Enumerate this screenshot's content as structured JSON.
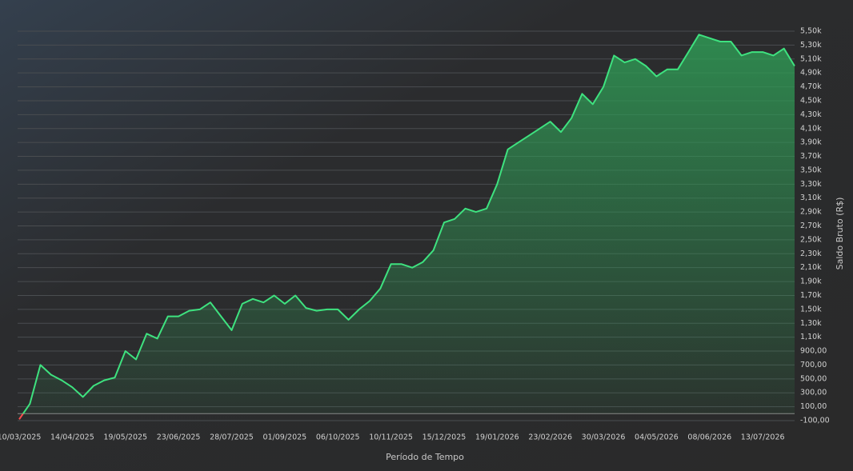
{
  "chart_data": {
    "type": "area-line",
    "x_label": "Período de Tempo",
    "y_label": "Saldo Bruto (R$)",
    "categories": [
      "10/03/2025",
      null,
      null,
      null,
      null,
      "14/04/2025",
      null,
      null,
      null,
      null,
      "19/05/2025",
      null,
      null,
      null,
      null,
      "23/06/2025",
      null,
      null,
      null,
      null,
      "28/07/2025",
      null,
      null,
      null,
      null,
      "01/09/2025",
      null,
      null,
      null,
      null,
      "06/10/2025",
      null,
      null,
      null,
      null,
      "10/11/2025",
      null,
      null,
      null,
      null,
      "15/12/2025",
      null,
      null,
      null,
      null,
      "19/01/2026",
      null,
      null,
      null,
      null,
      "23/02/2026",
      null,
      null,
      null,
      null,
      "30/03/2026",
      null,
      null,
      null,
      null,
      "04/05/2026",
      null,
      null,
      null,
      null,
      "08/06/2026",
      null,
      null,
      null,
      null,
      "13/07/2026",
      null,
      null,
      null
    ],
    "values": [
      -80,
      140,
      700,
      560,
      480,
      380,
      240,
      400,
      480,
      520,
      900,
      780,
      1150,
      1080,
      1400,
      1400,
      1480,
      1500,
      1600,
      1400,
      1200,
      1580,
      1650,
      1600,
      1700,
      1580,
      1700,
      1520,
      1480,
      1500,
      1500,
      1350,
      1500,
      1620,
      1800,
      2150,
      2150,
      2100,
      2180,
      2350,
      2750,
      2800,
      2950,
      2900,
      2950,
      3300,
      3800,
      3900,
      4000,
      4100,
      4200,
      4050,
      4250,
      4600,
      4450,
      4700,
      5150,
      5050,
      5100,
      5000,
      4850,
      4950,
      4950,
      5200,
      5450,
      5400,
      5350,
      5350,
      5150,
      5200,
      5200,
      5150,
      5250,
      5000
    ],
    "ylim": [
      -100,
      5500
    ],
    "yticks": [
      {
        "value": -100,
        "label": "-100,00"
      },
      {
        "value": 100,
        "label": "100,00"
      },
      {
        "value": 300,
        "label": "300,00"
      },
      {
        "value": 500,
        "label": "500,00"
      },
      {
        "value": 700,
        "label": "700,00"
      },
      {
        "value": 900,
        "label": "900,00"
      },
      {
        "value": 1100,
        "label": "1,10k"
      },
      {
        "value": 1300,
        "label": "1,30k"
      },
      {
        "value": 1500,
        "label": "1,50k"
      },
      {
        "value": 1700,
        "label": "1,70k"
      },
      {
        "value": 1900,
        "label": "1,90k"
      },
      {
        "value": 2100,
        "label": "2,10k"
      },
      {
        "value": 2300,
        "label": "2,30k"
      },
      {
        "value": 2500,
        "label": "2,50k"
      },
      {
        "value": 2700,
        "label": "2,70k"
      },
      {
        "value": 2900,
        "label": "2,90k"
      },
      {
        "value": 3100,
        "label": "3,10k"
      },
      {
        "value": 3300,
        "label": "3,30k"
      },
      {
        "value": 3500,
        "label": "3,50k"
      },
      {
        "value": 3700,
        "label": "3,70k"
      },
      {
        "value": 3900,
        "label": "3,90k"
      },
      {
        "value": 4100,
        "label": "4,10k"
      },
      {
        "value": 4300,
        "label": "4,30k"
      },
      {
        "value": 4500,
        "label": "4,50k"
      },
      {
        "value": 4700,
        "label": "4,70k"
      },
      {
        "value": 4900,
        "label": "4,90k"
      },
      {
        "value": 5100,
        "label": "5,10k"
      },
      {
        "value": 5300,
        "label": "5,30k"
      },
      {
        "value": 5500,
        "label": "5,50k"
      }
    ],
    "grid": true,
    "line_color": "#3ee27f",
    "fill_color": "#2f9a55",
    "negative_color": "#ff4d4d"
  }
}
